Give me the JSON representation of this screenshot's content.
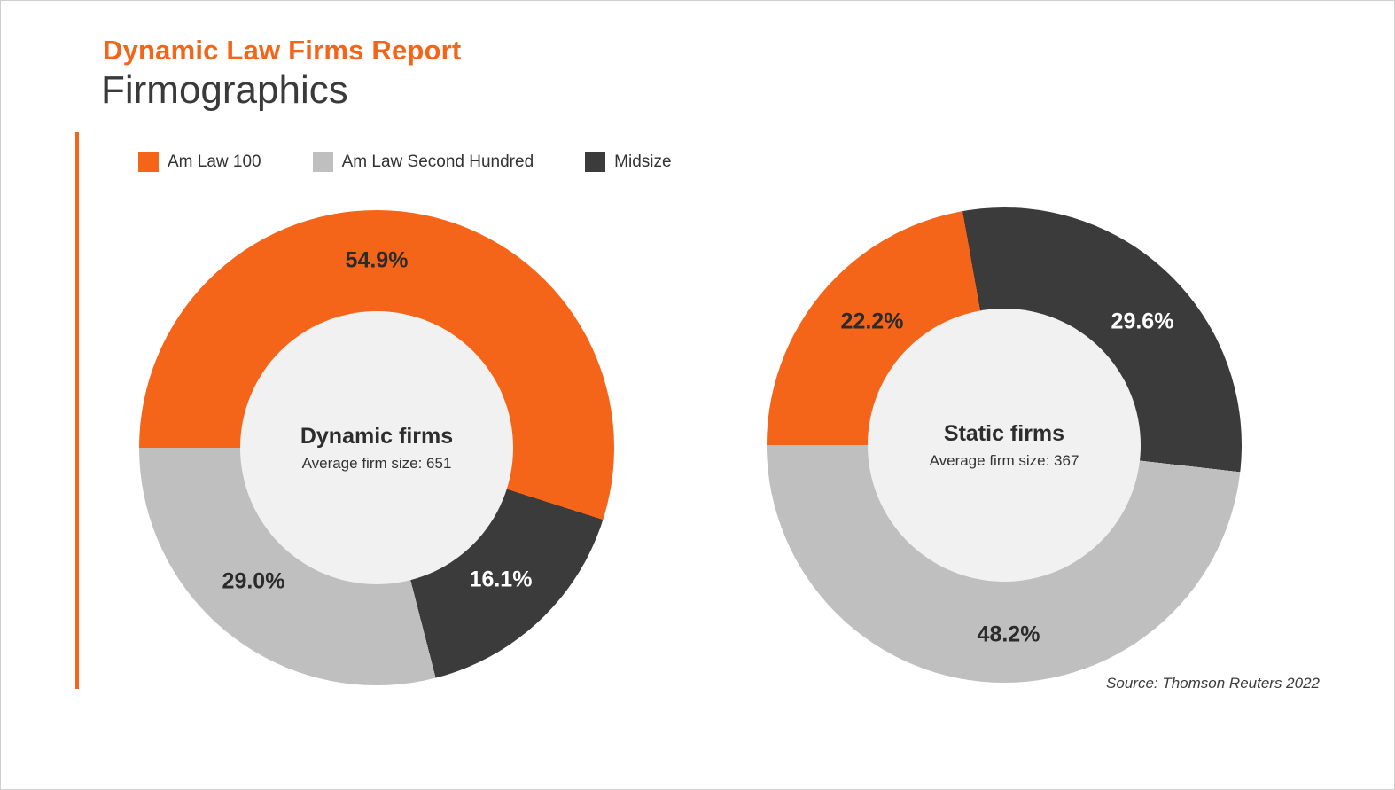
{
  "header": {
    "report_title": "Dynamic Law Firms Report",
    "page_title": "Firmographics"
  },
  "colors": {
    "brand_orange": "#F4651A",
    "gray_slice": "#BFBFBF",
    "dark_slice": "#3B3B3B",
    "donut_hole": "#F1F1F1"
  },
  "legend": {
    "items": [
      {
        "label": "Am Law 100",
        "color": "#F4651A"
      },
      {
        "label": "Am Law Second Hundred",
        "color": "#BFBFBF"
      },
      {
        "label": "Midsize",
        "color": "#3B3B3B"
      }
    ]
  },
  "source": "Source: Thomson Reuters 2022",
  "chart_data": [
    {
      "type": "pie",
      "subtype": "donut",
      "center_title": "Dynamic firms",
      "center_subtitle": "Average firm size: 651",
      "start_angle_deg": 270,
      "slices": [
        {
          "category": "Am Law 100",
          "value": 54.9,
          "display": "54.9%",
          "color": "#F4651A"
        },
        {
          "category": "Midsize",
          "value": 16.1,
          "display": "16.1%",
          "color": "#3B3B3B"
        },
        {
          "category": "Am Law Second Hundred",
          "value": 29.0,
          "display": "29.0%",
          "color": "#BFBFBF"
        }
      ]
    },
    {
      "type": "pie",
      "subtype": "donut",
      "center_title": "Static firms",
      "center_subtitle": "Average firm size: 367",
      "start_angle_deg": 270,
      "slices": [
        {
          "category": "Am Law 100",
          "value": 22.2,
          "display": "22.2%",
          "color": "#F4651A"
        },
        {
          "category": "Midsize",
          "value": 29.6,
          "display": "29.6%",
          "color": "#3B3B3B"
        },
        {
          "category": "Am Law Second Hundred",
          "value": 48.2,
          "display": "48.2%",
          "color": "#BFBFBF"
        }
      ]
    }
  ]
}
